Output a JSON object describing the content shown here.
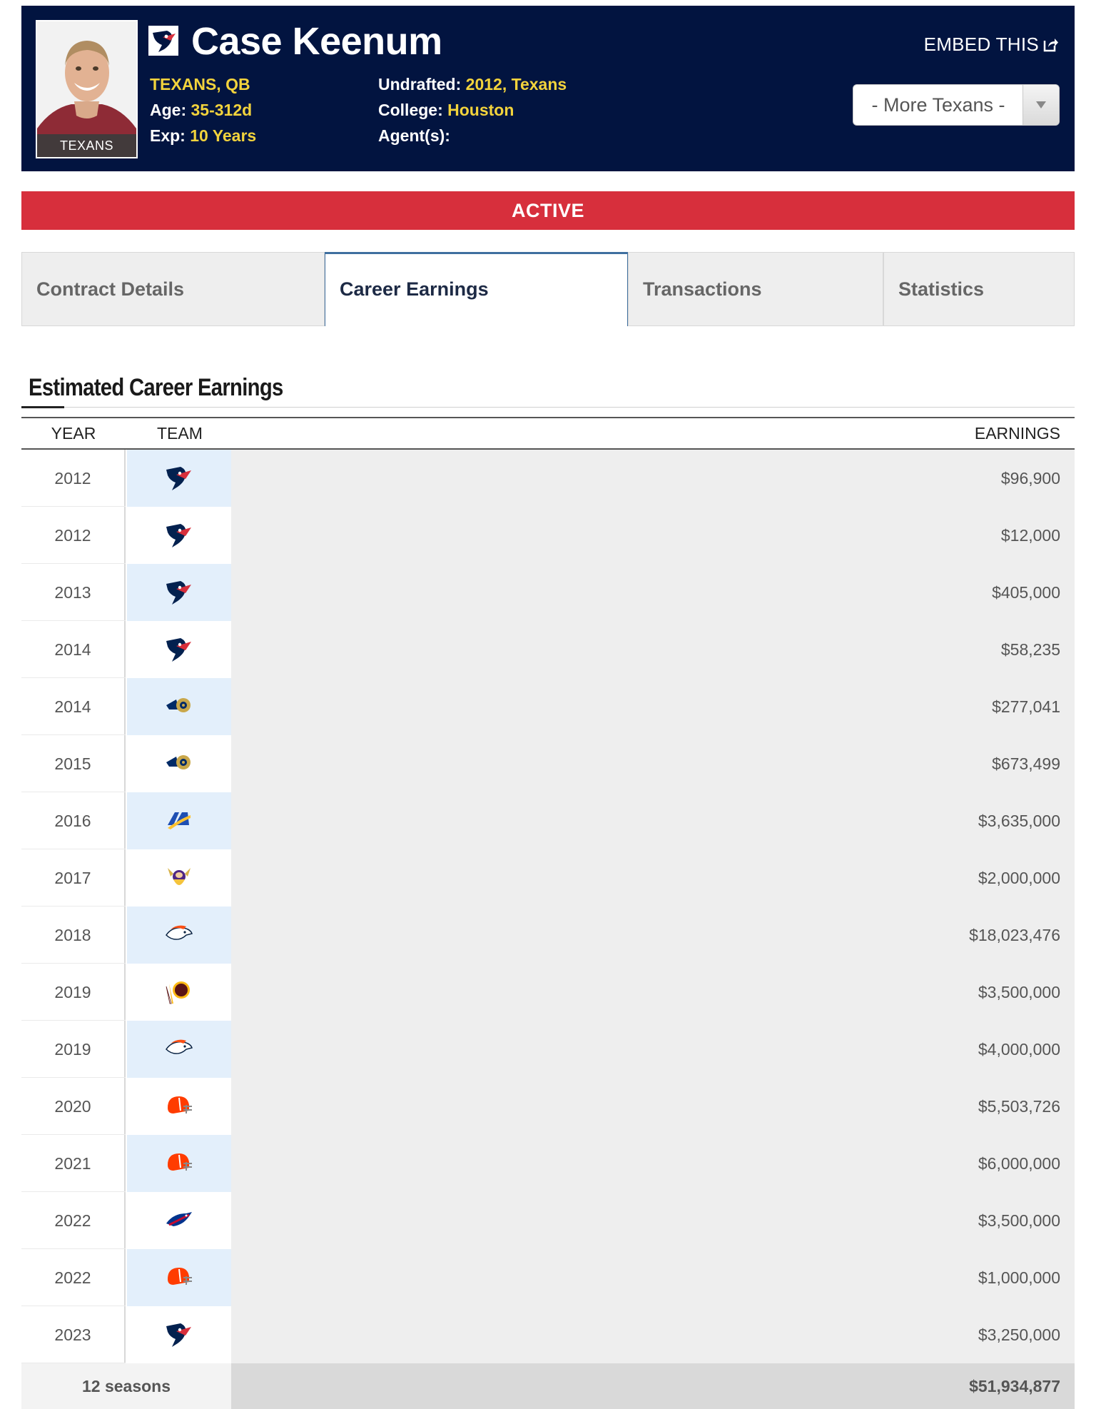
{
  "header": {
    "photo_label": "TEXANS",
    "player_name": "Case Keenum",
    "team_position": "TEXANS, QB",
    "age_label": "Age:",
    "age_value": "35-312d",
    "exp_label": "Exp:",
    "exp_value": "10 Years",
    "undrafted_label": "Undrafted:",
    "undrafted_value": "2012, Texans",
    "college_label": "College:",
    "college_value": "Houston",
    "agents_label": "Agent(s):",
    "embed_label": "EMBED THIS",
    "more_select": "- More Texans -"
  },
  "status": "ACTIVE",
  "tabs": [
    {
      "label": "Contract Details",
      "active": false
    },
    {
      "label": "Career Earnings",
      "active": true
    },
    {
      "label": "Transactions",
      "active": false
    },
    {
      "label": "Statistics",
      "active": false
    }
  ],
  "section_title": "Estimated Career Earnings",
  "table": {
    "columns": {
      "year": "YEAR",
      "team": "TEAM",
      "earnings": "EARNINGS"
    },
    "rows": [
      {
        "year": "2012",
        "team_icon": "texans-logo-icon",
        "earnings": "$96,900"
      },
      {
        "year": "2012",
        "team_icon": "texans-logo-icon",
        "earnings": "$12,000"
      },
      {
        "year": "2013",
        "team_icon": "texans-logo-icon",
        "earnings": "$405,000"
      },
      {
        "year": "2014",
        "team_icon": "texans-logo-icon",
        "earnings": "$58,235"
      },
      {
        "year": "2014",
        "team_icon": "rams-logo-icon",
        "earnings": "$277,041"
      },
      {
        "year": "2015",
        "team_icon": "rams-logo-icon",
        "earnings": "$673,499"
      },
      {
        "year": "2016",
        "team_icon": "la-rams-logo-icon",
        "earnings": "$3,635,000"
      },
      {
        "year": "2017",
        "team_icon": "vikings-logo-icon",
        "earnings": "$2,000,000"
      },
      {
        "year": "2018",
        "team_icon": "broncos-logo-icon",
        "earnings": "$18,023,476"
      },
      {
        "year": "2019",
        "team_icon": "washington-logo-icon",
        "earnings": "$3,500,000"
      },
      {
        "year": "2019",
        "team_icon": "broncos-logo-icon",
        "earnings": "$4,000,000"
      },
      {
        "year": "2020",
        "team_icon": "browns-logo-icon",
        "earnings": "$5,503,726"
      },
      {
        "year": "2021",
        "team_icon": "browns-logo-icon",
        "earnings": "$6,000,000"
      },
      {
        "year": "2022",
        "team_icon": "bills-logo-icon",
        "earnings": "$3,500,000"
      },
      {
        "year": "2022",
        "team_icon": "browns-logo-icon",
        "earnings": "$1,000,000"
      },
      {
        "year": "2023",
        "team_icon": "texans-logo-icon",
        "earnings": "$3,250,000"
      }
    ],
    "footer": {
      "seasons": "12 seasons",
      "total": "$51,934,877"
    }
  },
  "colors": {
    "header_bg": "#021440",
    "header_value": "#f2d33c",
    "status_bg": "#d72f3c",
    "row_alt": "#e3effb",
    "earnings_bg": "#eeeeee"
  }
}
